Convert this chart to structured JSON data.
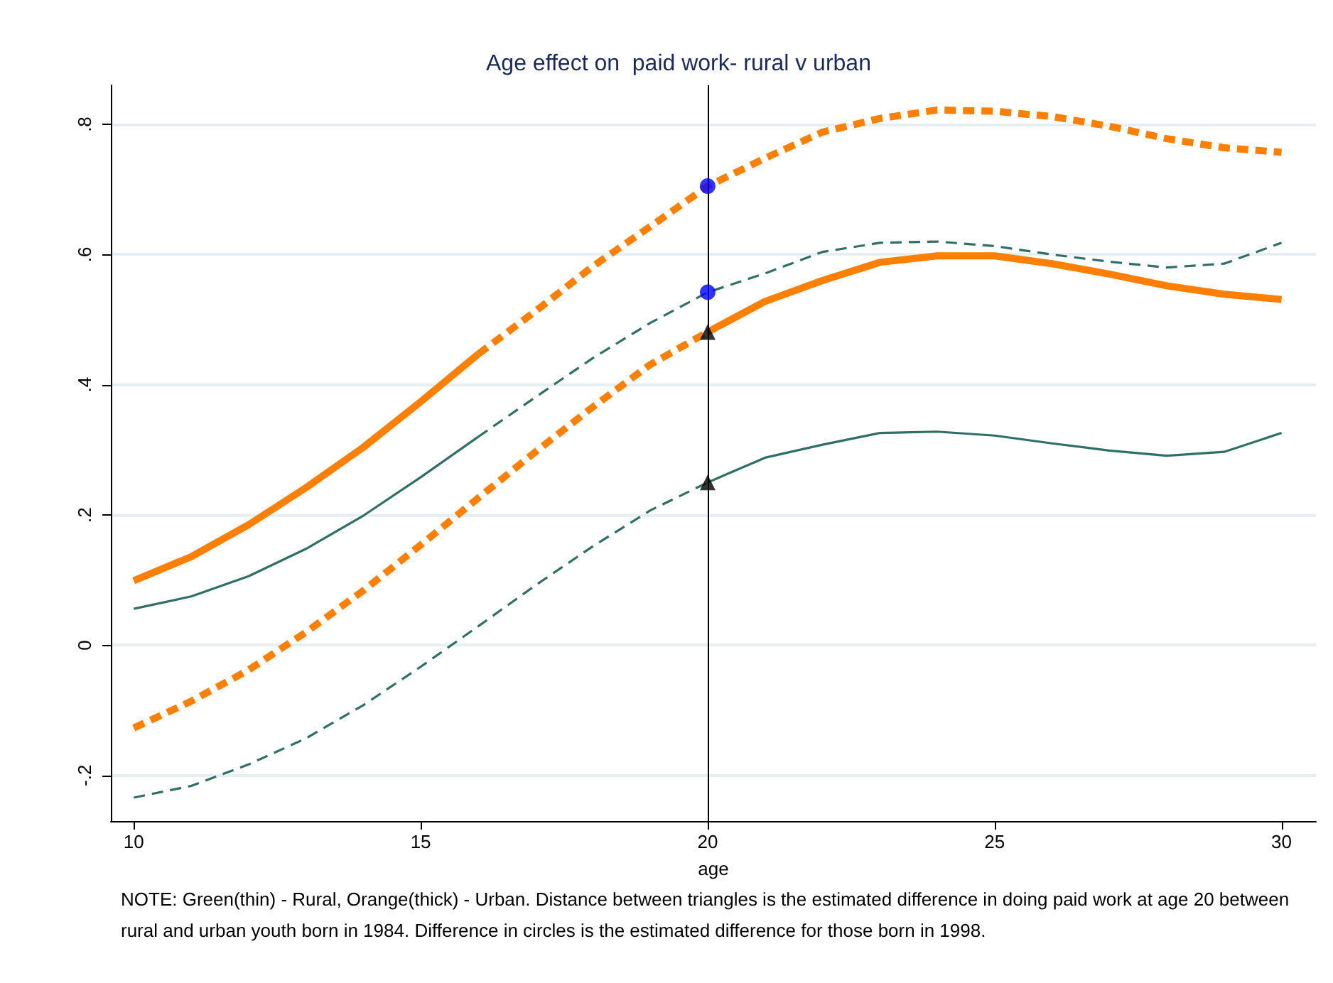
{
  "chart_data": {
    "type": "line",
    "title": "Age effect on  paid work- rural v urban",
    "xlabel": "age",
    "annotations": [
      "NOTE: Green(thin) - Rural, Orange(thick) - Urban. Distance between triangles is the estimated difference in doing paid work at age 20 between rural and urban youth born in 1984. Difference in circles is the estimated difference for those born in 1998."
    ],
    "xlim": [
      9.6,
      30.6
    ],
    "xticks": [
      10,
      15,
      20,
      25,
      30
    ],
    "ylim": [
      -0.27,
      0.86
    ],
    "yticks": [
      {
        "value": -0.2,
        "label": "-.2"
      },
      0,
      {
        "value": 0.2,
        "label": ".2"
      },
      {
        "value": 0.4,
        "label": ".4"
      },
      {
        "value": 0.6,
        "label": ".6"
      },
      {
        "value": 0.8,
        "label": ".8"
      }
    ],
    "grid": "y",
    "marker": "none",
    "ref_lines": [
      {
        "axis": "x",
        "value": 20,
        "color": "#000000",
        "line_style": "solid"
      }
    ],
    "series": [
      {
        "color": "#ff8000",
        "line_style": "solid",
        "x": [
          10,
          11,
          12,
          13,
          14,
          15,
          16
        ],
        "values": [
          0.099,
          0.136,
          0.185,
          0.242,
          0.304,
          0.374,
          0.447
        ]
      },
      {
        "color": "#ff8000",
        "line_style": "dashed",
        "x": [
          16,
          17,
          18,
          19,
          20,
          21,
          22,
          23,
          24,
          25,
          26,
          27,
          28,
          29,
          30
        ],
        "values": [
          0.447,
          0.513,
          0.582,
          0.643,
          0.705,
          0.748,
          0.788,
          0.809,
          0.822,
          0.82,
          0.812,
          0.797,
          0.778,
          0.764,
          0.757
        ]
      },
      {
        "color": "#2f6f64",
        "line_style": "solid",
        "x": [
          10,
          11,
          12,
          13,
          14,
          15,
          16
        ],
        "values": [
          0.056,
          0.075,
          0.106,
          0.148,
          0.199,
          0.258,
          0.32
        ]
      },
      {
        "color": "#2f6f64",
        "line_style": "dashed",
        "x": [
          16,
          17,
          18,
          19,
          20,
          21,
          22,
          23,
          24,
          25,
          26,
          27,
          28,
          29,
          30
        ],
        "values": [
          0.32,
          0.381,
          0.441,
          0.495,
          0.542,
          0.571,
          0.604,
          0.618,
          0.62,
          0.613,
          0.6,
          0.589,
          0.58,
          0.586,
          0.618
        ]
      },
      {
        "color": "#ff8000",
        "line_style": "dashed",
        "x": [
          10,
          11,
          12,
          13,
          14,
          15,
          16,
          17,
          18,
          19,
          20
        ],
        "values": [
          -0.127,
          -0.086,
          -0.038,
          0.02,
          0.084,
          0.154,
          0.226,
          0.297,
          0.366,
          0.431,
          0.481
        ]
      },
      {
        "color": "#ff8000",
        "line_style": "solid",
        "x": [
          20,
          21,
          22,
          23,
          24,
          25,
          26,
          27,
          28,
          29,
          30
        ],
        "values": [
          0.481,
          0.528,
          0.56,
          0.588,
          0.598,
          0.598,
          0.586,
          0.57,
          0.552,
          0.539,
          0.531
        ]
      },
      {
        "color": "#2f6f64",
        "line_style": "dashed",
        "x": [
          10,
          11,
          12,
          13,
          14,
          15,
          16,
          17,
          18,
          19,
          20
        ],
        "values": [
          -0.234,
          -0.216,
          -0.183,
          -0.143,
          -0.092,
          -0.033,
          0.029,
          0.092,
          0.152,
          0.207,
          0.25
        ]
      },
      {
        "color": "#2f6f64",
        "line_style": "solid",
        "x": [
          20,
          21,
          22,
          23,
          24,
          25,
          26,
          27,
          28,
          29,
          30
        ],
        "values": [
          0.25,
          0.288,
          0.308,
          0.326,
          0.328,
          0.322,
          0.31,
          0.299,
          0.291,
          0.297,
          0.326
        ]
      },
      {
        "type": "scatter",
        "marker": "circle",
        "color": "#0000ff",
        "x": [
          20,
          20
        ],
        "values": [
          0.705,
          0.542
        ]
      },
      {
        "type": "scatter",
        "marker": "triangle",
        "color": "#000000",
        "x": [
          20,
          20
        ],
        "values": [
          0.481,
          0.25
        ]
      }
    ]
  }
}
